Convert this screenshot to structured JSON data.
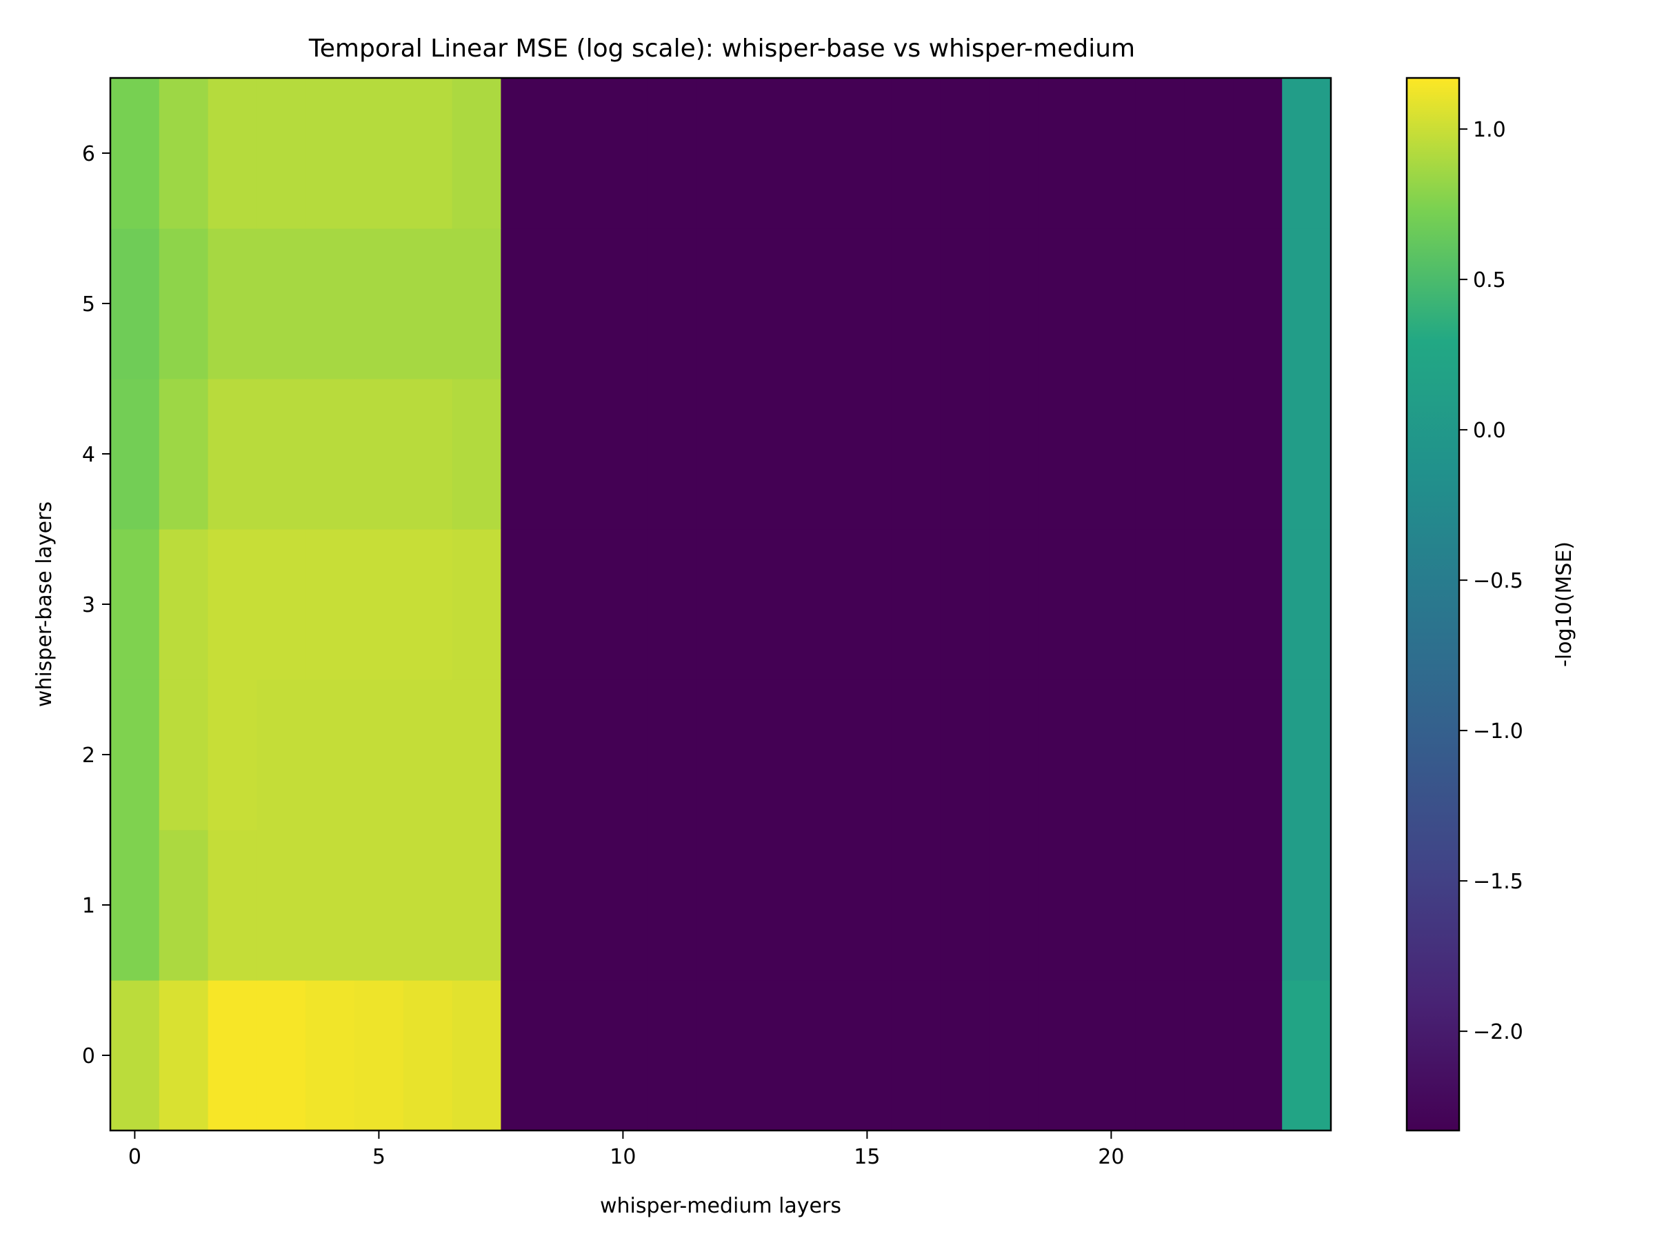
{
  "chart_data": {
    "type": "heatmap",
    "title": "Temporal Linear MSE (log scale): whisper-base vs whisper-medium",
    "xlabel": "whisper-medium layers",
    "ylabel": "whisper-base layers",
    "colorbar_label": "-log10(MSE)",
    "x_categories": [
      0,
      1,
      2,
      3,
      4,
      5,
      6,
      7,
      8,
      9,
      10,
      11,
      12,
      13,
      14,
      15,
      16,
      17,
      18,
      19,
      20,
      21,
      22,
      23,
      24
    ],
    "y_categories": [
      0,
      1,
      2,
      3,
      4,
      5,
      6
    ],
    "x_ticks": [
      0,
      5,
      10,
      15,
      20
    ],
    "x_tick_labels": [
      "0",
      "5",
      "10",
      "15",
      "20"
    ],
    "y_ticks": [
      0,
      1,
      2,
      3,
      4,
      5,
      6
    ],
    "y_tick_labels": [
      "0",
      "1",
      "2",
      "3",
      "4",
      "5",
      "6"
    ],
    "colorbar_ticks": [
      1.0,
      0.5,
      0.0,
      -0.5,
      -1.0,
      -1.5,
      -2.0
    ],
    "colorbar_tick_labels": [
      "1.0",
      "0.5",
      "0.0",
      "−0.5",
      "−1.0",
      "−1.5",
      "−2.0"
    ],
    "vmin": -2.33,
    "vmax": 1.17,
    "colormap": "viridis",
    "values": [
      [
        0.95,
        1.05,
        1.15,
        1.15,
        1.13,
        1.12,
        1.1,
        1.08,
        -2.33,
        -2.33,
        -2.33,
        -2.33,
        -2.33,
        -2.33,
        -2.33,
        -2.33,
        -2.33,
        -2.33,
        -2.33,
        -2.33,
        -2.33,
        -2.33,
        -2.33,
        -2.33,
        0.22
      ],
      [
        0.75,
        0.9,
        0.98,
        0.98,
        0.98,
        0.98,
        0.98,
        0.98,
        -2.33,
        -2.33,
        -2.33,
        -2.33,
        -2.33,
        -2.33,
        -2.33,
        -2.33,
        -2.33,
        -2.33,
        -2.33,
        -2.33,
        -2.33,
        -2.33,
        -2.33,
        -2.33,
        0.08
      ],
      [
        0.75,
        0.95,
        0.99,
        0.98,
        0.98,
        0.98,
        0.98,
        0.98,
        -2.33,
        -2.33,
        -2.33,
        -2.33,
        -2.33,
        -2.33,
        -2.33,
        -2.33,
        -2.33,
        -2.33,
        -2.33,
        -2.33,
        -2.33,
        -2.33,
        -2.33,
        -2.33,
        0.08
      ],
      [
        0.75,
        0.95,
        0.99,
        0.99,
        0.99,
        0.99,
        0.99,
        0.98,
        -2.33,
        -2.33,
        -2.33,
        -2.33,
        -2.33,
        -2.33,
        -2.33,
        -2.33,
        -2.33,
        -2.33,
        -2.33,
        -2.33,
        -2.33,
        -2.33,
        -2.33,
        -2.33,
        0.08
      ],
      [
        0.7,
        0.85,
        0.94,
        0.94,
        0.94,
        0.94,
        0.94,
        0.92,
        -2.33,
        -2.33,
        -2.33,
        -2.33,
        -2.33,
        -2.33,
        -2.33,
        -2.33,
        -2.33,
        -2.33,
        -2.33,
        -2.33,
        -2.33,
        -2.33,
        -2.33,
        -2.33,
        0.08
      ],
      [
        0.68,
        0.8,
        0.88,
        0.88,
        0.88,
        0.88,
        0.88,
        0.88,
        -2.33,
        -2.33,
        -2.33,
        -2.33,
        -2.33,
        -2.33,
        -2.33,
        -2.33,
        -2.33,
        -2.33,
        -2.33,
        -2.33,
        -2.33,
        -2.33,
        -2.33,
        -2.33,
        0.08
      ],
      [
        0.72,
        0.85,
        0.93,
        0.93,
        0.93,
        0.93,
        0.93,
        0.9,
        -2.33,
        -2.33,
        -2.33,
        -2.33,
        -2.33,
        -2.33,
        -2.33,
        -2.33,
        -2.33,
        -2.33,
        -2.33,
        -2.33,
        -2.33,
        -2.33,
        -2.33,
        -2.33,
        0.08
      ]
    ]
  }
}
